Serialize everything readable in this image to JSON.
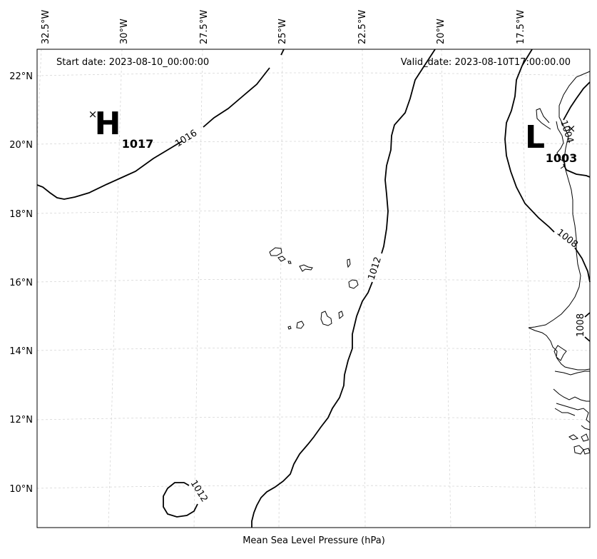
{
  "map": {
    "caption": "Mean Sea Level Pressure (hPa)",
    "start_date": "Start date: 2023-08-10_00:00:00",
    "valid_date": "Valid_date: 2023-08-10T17:00:00.00",
    "longitude_labels": [
      "32.5°W",
      "30°W",
      "27.5°W",
      "25°W",
      "22.5°W",
      "20°W",
      "17.5°W"
    ],
    "latitude_labels": [
      "22°N",
      "20°N",
      "18°N",
      "16°N",
      "14°N",
      "12°N",
      "10°N"
    ],
    "isobar_labels": [
      {
        "id": "iso-1016",
        "text": "1016"
      },
      {
        "id": "iso-1012-east",
        "text": "1012"
      },
      {
        "id": "iso-1012-south",
        "text": "1012"
      },
      {
        "id": "iso-1008-a",
        "text": "1008"
      },
      {
        "id": "iso-1008-b",
        "text": "1008"
      },
      {
        "id": "iso-1004",
        "text": "1004"
      }
    ],
    "pressure_centers": [
      {
        "type": "high",
        "letter": "H",
        "value": "1017",
        "marker": "×"
      },
      {
        "type": "low",
        "letter": "L",
        "value": "1003",
        "marker": "×"
      }
    ],
    "colors": {
      "isobar": "#000000",
      "coast": "#000000",
      "grid": "#d6d6d6"
    }
  }
}
